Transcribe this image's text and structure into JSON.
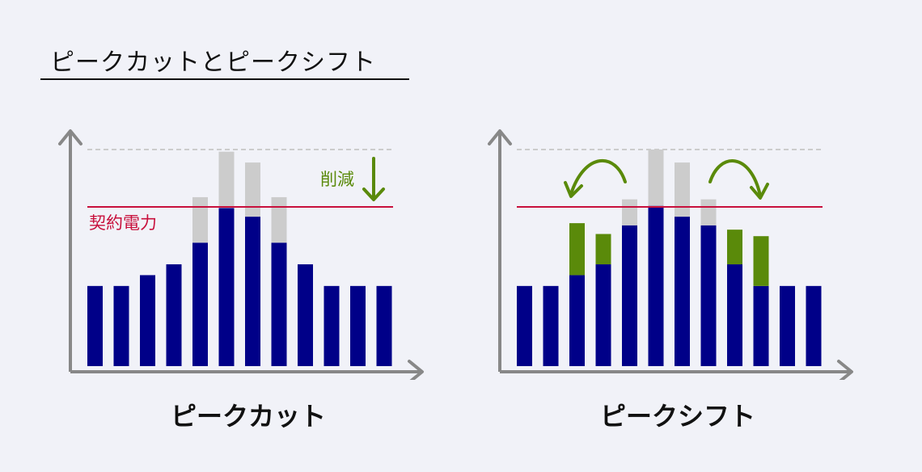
{
  "title": "ピークカットとピークシフト",
  "colors": {
    "base": "#000088",
    "removed": "#cccccc",
    "shifted": "#5a8a0a",
    "contract": "#c8103c",
    "axis": "#888888",
    "peak_guide": "#cccccc"
  },
  "peak_cut": {
    "caption": "ピークカット",
    "contract_label": "契約電力",
    "reduction_label": "削減",
    "bars": [
      {
        "base": 3.7,
        "removed": 0
      },
      {
        "base": 3.7,
        "removed": 0
      },
      {
        "base": 4.2,
        "removed": 0
      },
      {
        "base": 4.7,
        "removed": 0
      },
      {
        "base": 5.7,
        "removed": 2.1
      },
      {
        "base": 7.3,
        "removed": 2.6
      },
      {
        "base": 6.9,
        "removed": 2.5
      },
      {
        "base": 5.7,
        "removed": 2.1
      },
      {
        "base": 4.7,
        "removed": 0
      },
      {
        "base": 3.7,
        "removed": 0
      },
      {
        "base": 3.7,
        "removed": 0
      },
      {
        "base": 3.7,
        "removed": 0
      }
    ]
  },
  "peak_shift": {
    "caption": "ピークシフト",
    "bars": [
      {
        "base": 3.7,
        "shifted": 0,
        "removed": 0
      },
      {
        "base": 3.7,
        "shifted": 0,
        "removed": 0
      },
      {
        "base": 4.2,
        "shifted": 2.4,
        "removed": 0
      },
      {
        "base": 4.7,
        "shifted": 1.4,
        "removed": 0
      },
      {
        "base": 6.5,
        "shifted": 0,
        "removed": 1.2
      },
      {
        "base": 7.4,
        "shifted": 0,
        "removed": 2.6
      },
      {
        "base": 6.9,
        "shifted": 0,
        "removed": 2.5
      },
      {
        "base": 6.5,
        "shifted": 0,
        "removed": 1.2
      },
      {
        "base": 4.7,
        "shifted": 1.6,
        "removed": 0
      },
      {
        "base": 3.7,
        "shifted": 2.3,
        "removed": 0
      },
      {
        "base": 3.7,
        "shifted": 0,
        "removed": 0
      },
      {
        "base": 3.7,
        "shifted": 0,
        "removed": 0
      }
    ]
  }
}
